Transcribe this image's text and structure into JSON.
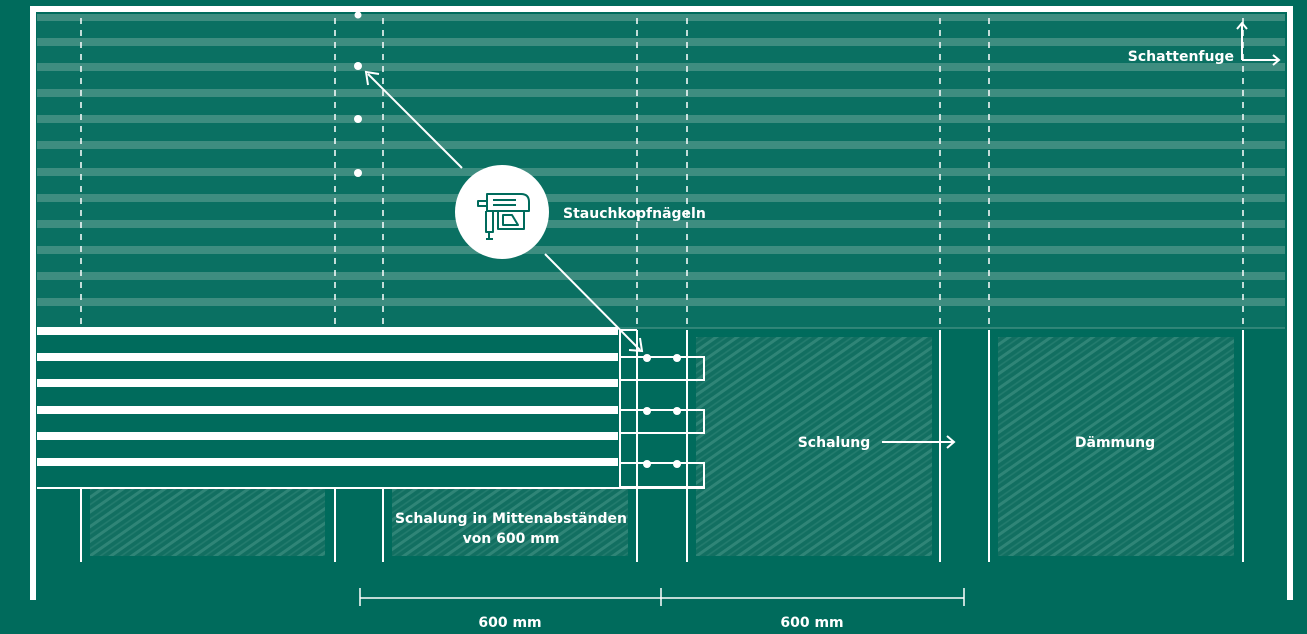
{
  "labels": {
    "schattenfuge": "Schattenfuge",
    "stauchkopfnaegeln": "Stauchkopfnägeln",
    "schalung": "Schalung",
    "daemmung": "Dämmung",
    "schalung_abstand_line1": "Schalung in Mittenabständen",
    "schalung_abstand_line2": "von 600 mm"
  },
  "dimensions": {
    "left": "600 mm",
    "right": "600 mm"
  },
  "icons": {
    "nail_gun": "nail-gun-icon",
    "corner_arrows": "corner-arrow-icon"
  },
  "colors": {
    "background": "#006b5c",
    "board_shade": "#3e8d80",
    "insulation_hatch": "#2c8274",
    "line": "#ffffff"
  }
}
